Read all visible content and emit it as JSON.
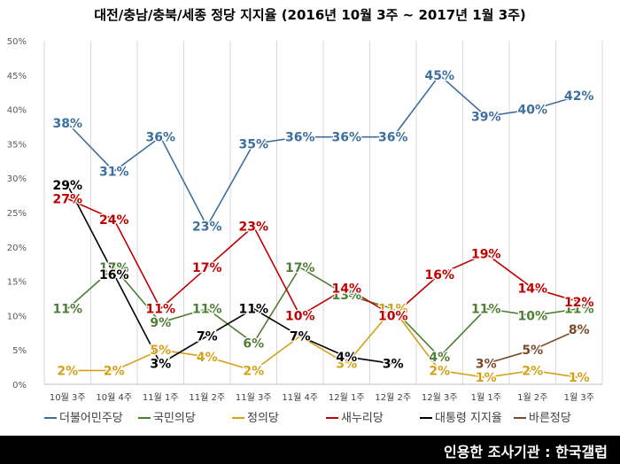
{
  "chart_data": {
    "type": "line",
    "title": "대전/충남/충북/세종 정당 지지율 (2016년 10월 3주 ~ 2017년 1월 3주)",
    "categories": [
      "10월 3주",
      "10월 4주",
      "11월 1주",
      "11월 2주",
      "11월 3주",
      "11월 4주",
      "12월 1주",
      "12월 2주",
      "12월 3주",
      "1월 1주",
      "1월 2주",
      "1월 3주"
    ],
    "ylim": [
      0,
      50
    ],
    "yticks": [
      "0%",
      "5%",
      "10%",
      "15%",
      "20%",
      "25%",
      "30%",
      "35%",
      "40%",
      "45%",
      "50%"
    ],
    "grid": "vertical",
    "legend": "bottom",
    "series": [
      {
        "name": "더불어민주당",
        "color": "#3d6f9e",
        "values": [
          38,
          31,
          36,
          23,
          35,
          36,
          36,
          36,
          45,
          39,
          40,
          42
        ],
        "labels": [
          "38%",
          "31%",
          "36%",
          "23%",
          "35%",
          "36%",
          "36%",
          "36%",
          "45%",
          "39%",
          "40%",
          "42%"
        ]
      },
      {
        "name": "국민의당",
        "color": "#4f7e35",
        "values": [
          11,
          17,
          9,
          11,
          6,
          17,
          13,
          11,
          4,
          11,
          10,
          11
        ],
        "labels": [
          "11%",
          "17%",
          "9%",
          "11%",
          "6%",
          "17%",
          "13%",
          "",
          "4%",
          "11%",
          "10%",
          "11%"
        ]
      },
      {
        "name": "정의당",
        "color": "#d4a017",
        "values": [
          2,
          2,
          5,
          4,
          2,
          7,
          3,
          11,
          2,
          1,
          2,
          1
        ],
        "labels": [
          "2%",
          "2%",
          "5%",
          "4%",
          "2%",
          "",
          "3%",
          "11%",
          "2%",
          "1%",
          "2%",
          "1%"
        ]
      },
      {
        "name": "새누리당",
        "color": "#c00000",
        "values": [
          27,
          24,
          11,
          17,
          23,
          10,
          14,
          10,
          16,
          19,
          14,
          12
        ],
        "labels": [
          "27%",
          "24%",
          "11%",
          "17%",
          "23%",
          "10%",
          "14%",
          "10%",
          "16%",
          "19%",
          "14%",
          "12%"
        ]
      },
      {
        "name": "대통령 지지율",
        "color": "#000000",
        "values": [
          29,
          16,
          3,
          7,
          11,
          7,
          4,
          3,
          null,
          null,
          null,
          null
        ],
        "labels": [
          "29%",
          "16%",
          "3%",
          "7%",
          "11%",
          "7%",
          "4%",
          "3%",
          "",
          "",
          "",
          ""
        ]
      },
      {
        "name": "바른정당",
        "color": "#7a4a2a",
        "values": [
          null,
          null,
          null,
          null,
          null,
          null,
          null,
          null,
          null,
          3,
          5,
          8
        ],
        "labels": [
          "",
          "",
          "",
          "",
          "",
          "",
          "",
          "",
          "",
          "3%",
          "5%",
          "8%"
        ]
      }
    ]
  },
  "footer": {
    "source": "인용한 조사기관 : 한국갤럽"
  }
}
